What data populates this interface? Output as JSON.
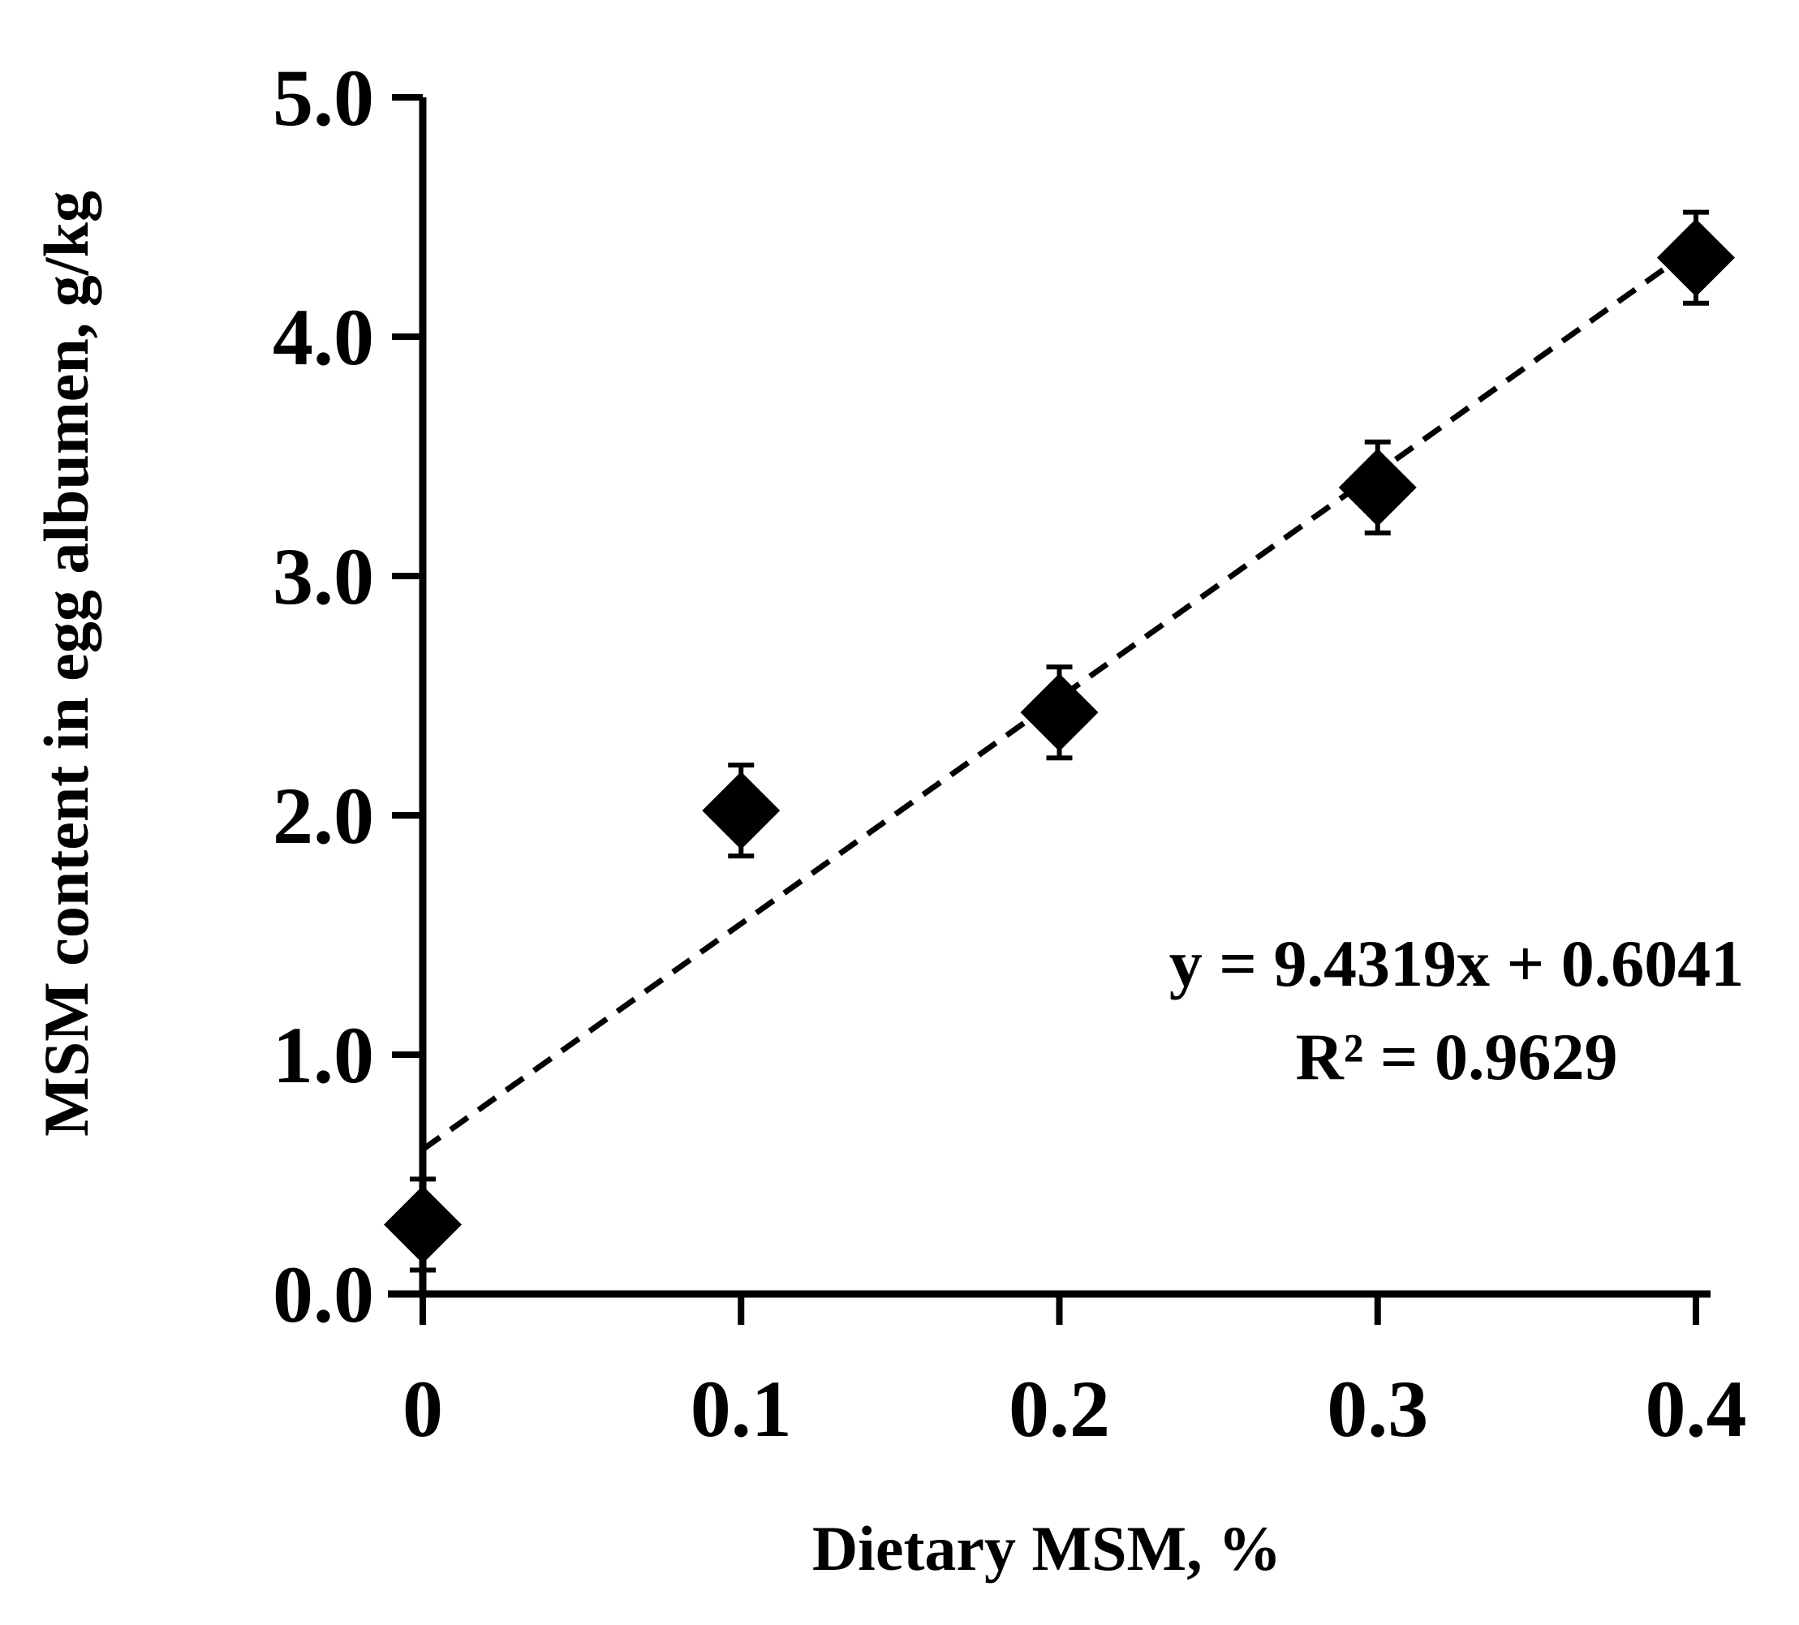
{
  "chart_data": {
    "type": "scatter",
    "title": "",
    "xlabel": "Dietary MSM, %",
    "ylabel": "MSM content in egg albumen, g/kg",
    "xlim": [
      0,
      0.4
    ],
    "ylim": [
      0,
      5
    ],
    "x_ticks": [
      0,
      0.1,
      0.2,
      0.3,
      0.4
    ],
    "x_tick_labels": [
      "0",
      "0.1",
      "0.2",
      "0.3",
      "0.4"
    ],
    "y_ticks": [
      0,
      1,
      2,
      3,
      4,
      5
    ],
    "y_tick_labels": [
      "0.0",
      "1.0",
      "2.0",
      "3.0",
      "4.0",
      "5.0"
    ],
    "grid": false,
    "series": [
      {
        "name": "MSM content",
        "marker": "diamond",
        "color": "#000000",
        "x": [
          0,
          0.1,
          0.2,
          0.3,
          0.4
        ],
        "y": [
          0.29,
          2.02,
          2.43,
          3.37,
          4.33
        ],
        "error": [
          0.19,
          0.19,
          0.19,
          0.19,
          0.19
        ]
      }
    ],
    "trendline": {
      "style": "dashed",
      "slope": 9.4319,
      "intercept": 0.6041,
      "x_range": [
        0,
        0.4
      ]
    },
    "annotations": [
      "y = 9.4319x + 0.6041",
      "R² = 0.9629"
    ]
  }
}
